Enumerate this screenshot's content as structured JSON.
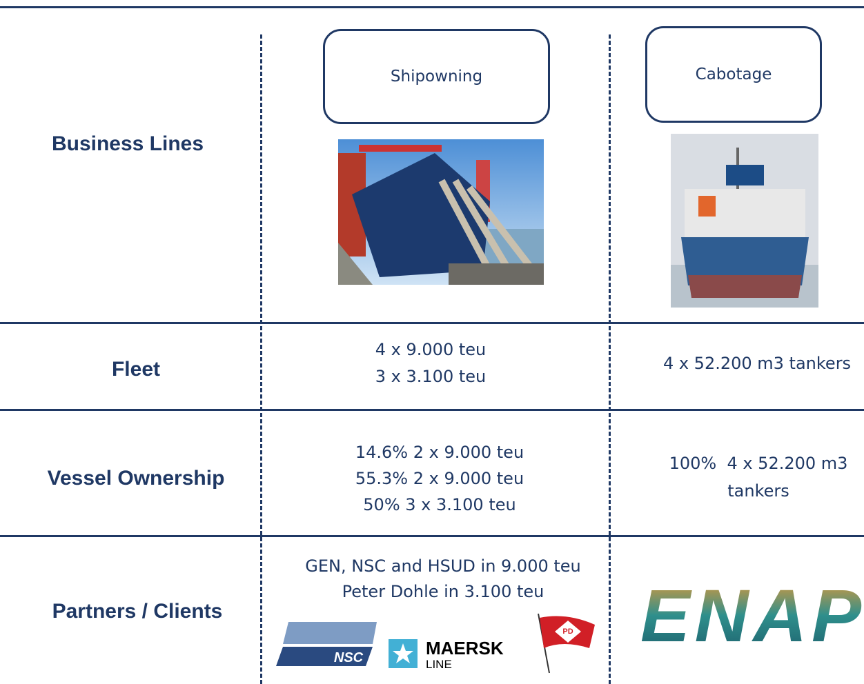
{
  "row_labels": [
    "Business Lines",
    "Fleet",
    "Vessel Ownership",
    "Partners / Clients"
  ],
  "business_lines": [
    "Shipowning",
    "Cabotage"
  ],
  "fleet": [
    [
      "4 x 9.000 teu",
      "3 x 3.100 teu"
    ],
    [
      "4 x 52.200 m3 tankers"
    ]
  ],
  "ownership": [
    [
      "14.6% 2 x 9.000 teu",
      "55.3% 2 x 9.000 teu",
      "50% 3 x 3.100 teu"
    ],
    [
      "100%  4 x 52.200 m3",
      "tankers"
    ]
  ],
  "partners": [
    "GEN, NSC and HSUD in 9.000 teu",
    "Peter Dohle in 3.100 teu"
  ],
  "logos": {
    "nsc": "NSC",
    "maersk": "MAERSK",
    "maersk_sub": "LINE",
    "pd": "PD",
    "enap": "ENAP"
  }
}
